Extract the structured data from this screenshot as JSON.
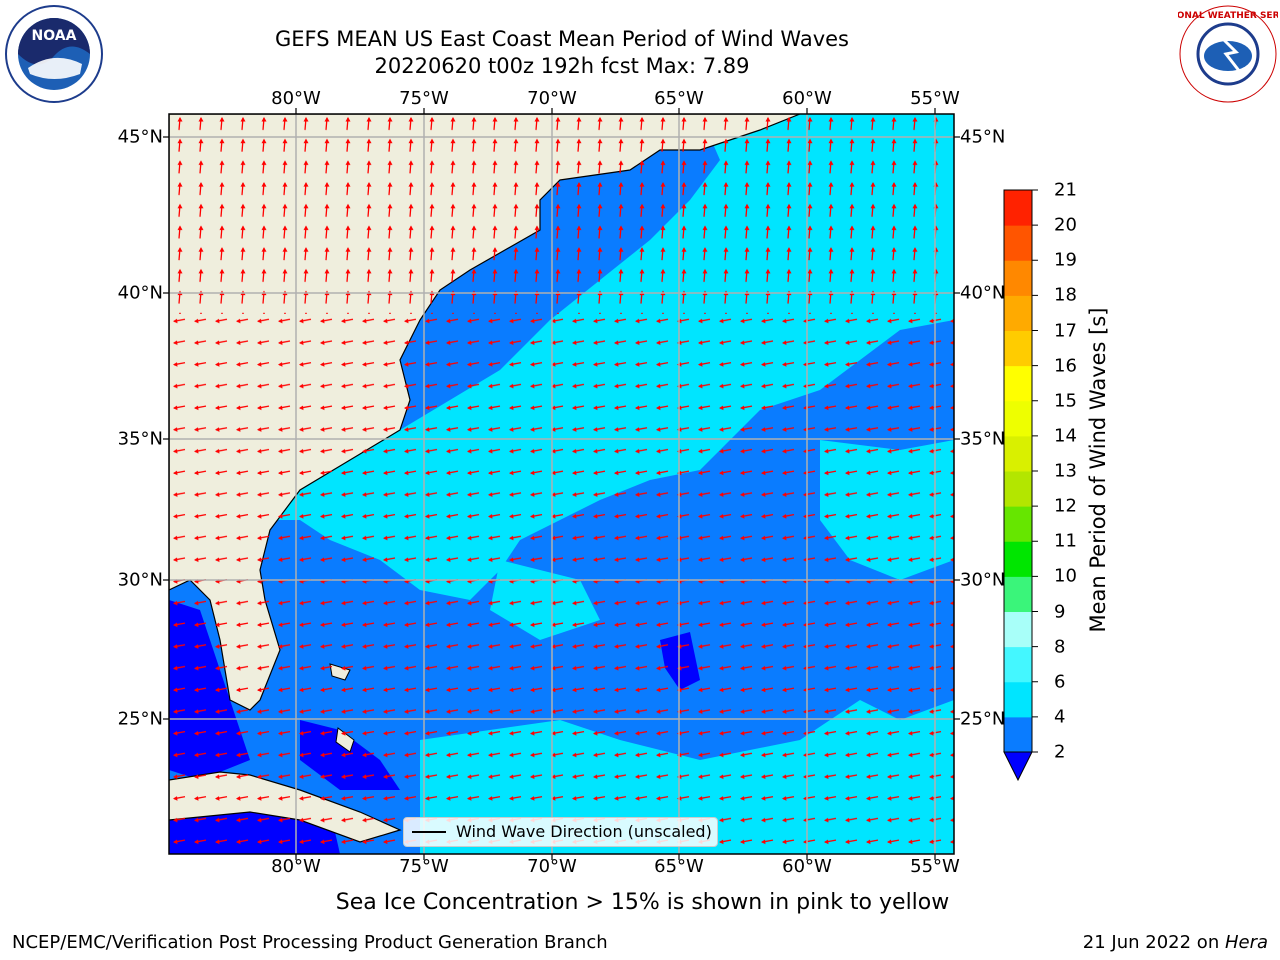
{
  "title": {
    "line1": "GEFS MEAN US East Coast Mean Period of Wind Waves",
    "line2": "20220620 t00z 192h fcst   Max: 7.89"
  },
  "map": {
    "lon_ticks_top": [
      "80°W",
      "75°W",
      "70°W",
      "65°W",
      "60°W",
      "55°W"
    ],
    "lon_ticks_bottom": [
      "80°W",
      "75°W",
      "70°W",
      "65°W",
      "60°W",
      "55°W"
    ],
    "lat_ticks_left": [
      "45°N",
      "40°N",
      "35°N",
      "30°N",
      "25°N"
    ],
    "lat_ticks_right": [
      "45°N",
      "40°N",
      "35°N",
      "30°N",
      "25°N"
    ],
    "legend_text": "Wind Wave Direction (unscaled)",
    "land_color": "#efeedd",
    "arrow_color": "#ff0000",
    "grid_color": "#b0b0b0"
  },
  "colorbar": {
    "label": "Mean Period of Wind Waves [s]",
    "ticks": [
      "2",
      "4",
      "6",
      "8",
      "9",
      "10",
      "11",
      "12",
      "13",
      "14",
      "15",
      "16",
      "17",
      "18",
      "19",
      "20",
      "21"
    ],
    "colors": [
      "#0a7cff",
      "#00e5ff",
      "#44f7ff",
      "#a8fff9",
      "#3af57a",
      "#00e600",
      "#66e600",
      "#b3e600",
      "#d9f000",
      "#eeff00",
      "#ffff00",
      "#ffcc00",
      "#ffaa00",
      "#ff8800",
      "#ff5500",
      "#ff2200"
    ],
    "under_color": "#0000ff"
  },
  "logos": {
    "noaa": "NOAA",
    "nws": "NATIONAL WEATHER SERVICE"
  },
  "note": "Sea Ice Concentration > 15% is shown in pink to yellow",
  "footer": {
    "left": "NCEP/EMC/Verification Post Processing Product Generation Branch",
    "right_date": "21 Jun 2022 on ",
    "right_host": "Hera"
  }
}
